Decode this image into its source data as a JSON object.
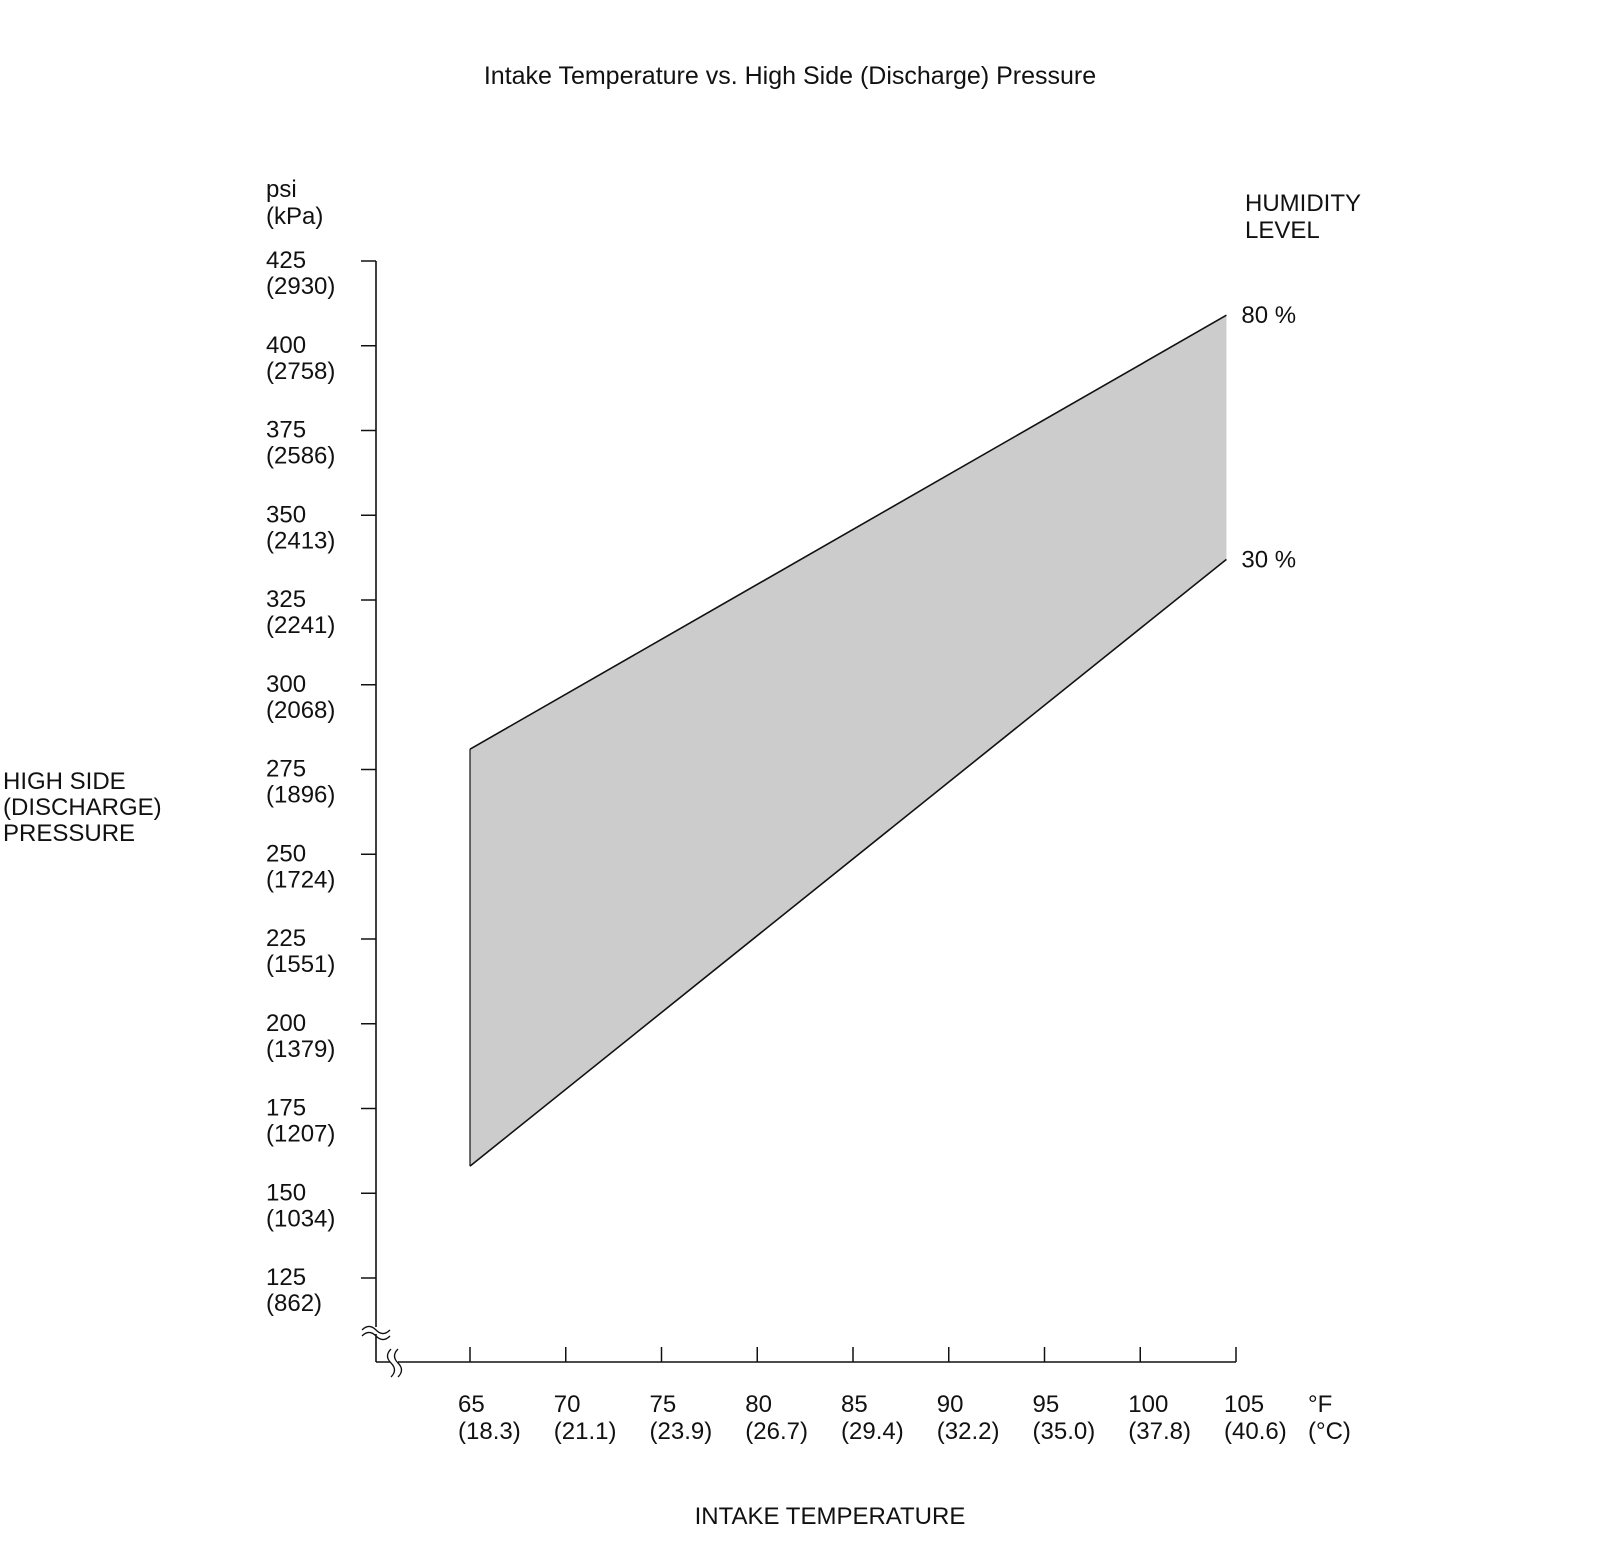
{
  "chart_data": {
    "type": "area",
    "title": "Intake Temperature vs. High Side (Discharge) Pressure",
    "xlabel": "INTAKE TEMPERATURE",
    "ylabel_lines": [
      "HIGH SIDE",
      "(DISCHARGE)",
      "PRESSURE"
    ],
    "y_unit_lines": [
      "psi",
      "(kPa)"
    ],
    "x_unit_lines": [
      "°F",
      "(°C)"
    ],
    "legend_title_lines": [
      "HUMIDITY",
      "LEVEL"
    ],
    "ylim": [
      112.5,
      425
    ],
    "xlim": [
      60,
      105
    ],
    "y_ticks": [
      {
        "value": 425,
        "line1": "425",
        "line2": "(2930)"
      },
      {
        "value": 400,
        "line1": "400",
        "line2": "(2758)"
      },
      {
        "value": 375,
        "line1": "375",
        "line2": "(2586)"
      },
      {
        "value": 350,
        "line1": "350",
        "line2": "(2413)"
      },
      {
        "value": 325,
        "line1": "325",
        "line2": "(2241)"
      },
      {
        "value": 300,
        "line1": "300",
        "line2": "(2068)"
      },
      {
        "value": 275,
        "line1": "275",
        "line2": "(1896)"
      },
      {
        "value": 250,
        "line1": "250",
        "line2": "(1724)"
      },
      {
        "value": 225,
        "line1": "225",
        "line2": "(1551)"
      },
      {
        "value": 200,
        "line1": "200",
        "line2": "(1379)"
      },
      {
        "value": 175,
        "line1": "175",
        "line2": "(1207)"
      },
      {
        "value": 150,
        "line1": "150",
        "line2": "(1034)"
      },
      {
        "value": 125,
        "line1": "125",
        "line2": "(862)"
      }
    ],
    "x_ticks": [
      {
        "value": 65,
        "line1": "65",
        "line2": "(18.3)"
      },
      {
        "value": 70,
        "line1": "70",
        "line2": "(21.1)"
      },
      {
        "value": 75,
        "line1": "75",
        "line2": "(23.9)"
      },
      {
        "value": 80,
        "line1": "80",
        "line2": "(26.7)"
      },
      {
        "value": 85,
        "line1": "85",
        "line2": "(29.4)"
      },
      {
        "value": 90,
        "line1": "90",
        "line2": "(32.2)"
      },
      {
        "value": 95,
        "line1": "95",
        "line2": "(35.0)"
      },
      {
        "value": 100,
        "line1": "100",
        "line2": "(37.8)"
      },
      {
        "value": 105,
        "line1": "105",
        "line2": "(40.6)"
      }
    ],
    "series": [
      {
        "name": "80 %",
        "x": [
          65,
          104.5
        ],
        "y": [
          281,
          409
        ]
      },
      {
        "name": "30 %",
        "x": [
          65,
          104.5
        ],
        "y": [
          158,
          337
        ]
      }
    ],
    "band_fill": "#cccccc",
    "line_color": "#111111",
    "axis_break": true,
    "grid": false
  }
}
